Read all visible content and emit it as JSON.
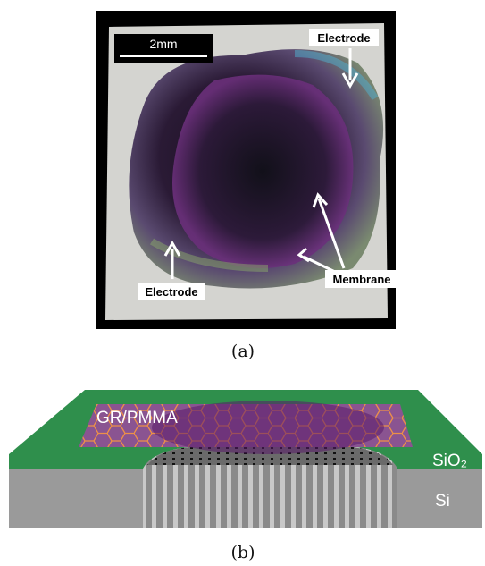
{
  "panel_a": {
    "scale_bar": "2mm",
    "labels": [
      "Electrode",
      "Electrode",
      "Membrane"
    ],
    "caption": "(a)"
  },
  "panel_b": {
    "labels": [
      "GR/PMMA",
      "SiO₂",
      "Si"
    ],
    "caption": "(b)"
  }
}
